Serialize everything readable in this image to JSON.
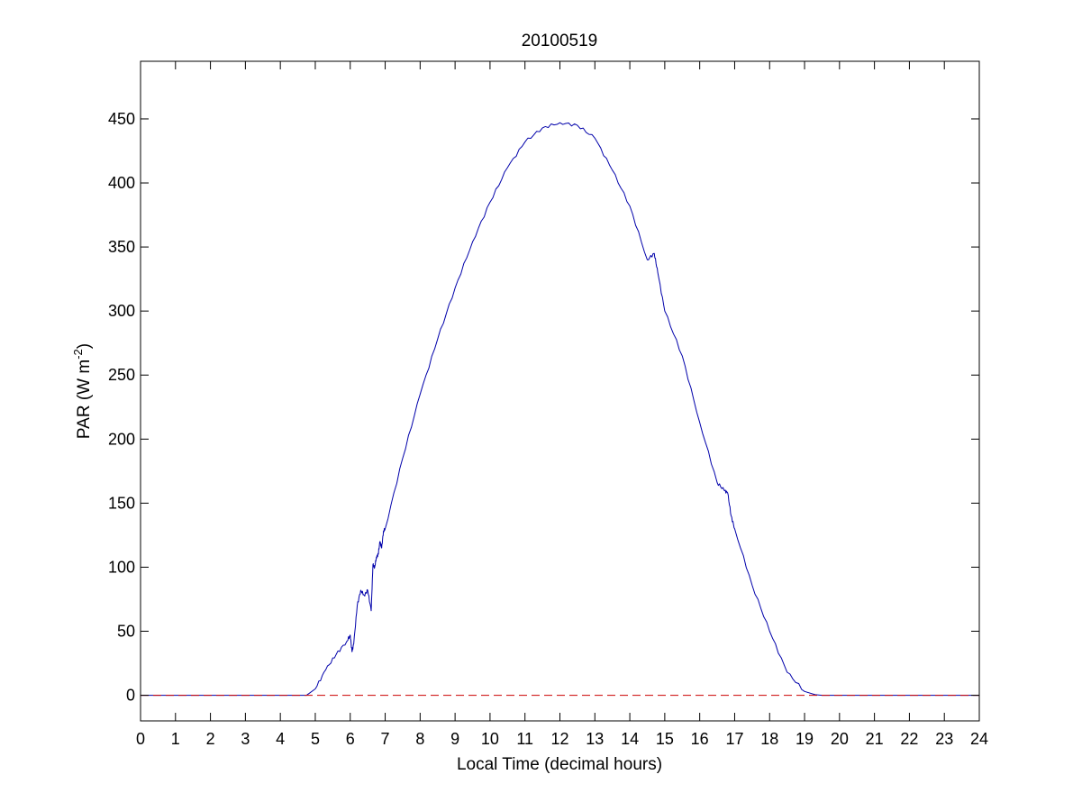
{
  "chart_data": {
    "type": "line",
    "title": "20100519",
    "xlabel": "Local Time (decimal hours)",
    "ylabel": {
      "main": "PAR (W m",
      "superscript": "-2",
      "close": ")"
    },
    "xlim": [
      0,
      24
    ],
    "ylim": [
      -20,
      495
    ],
    "xticks": [
      "0",
      "1",
      "2",
      "3",
      "4",
      "5",
      "6",
      "7",
      "8",
      "9",
      "10",
      "11",
      "12",
      "13",
      "14",
      "15",
      "16",
      "17",
      "18",
      "19",
      "20",
      "21",
      "22",
      "23",
      "24"
    ],
    "yticks": [
      "0",
      "50",
      "100",
      "150",
      "200",
      "250",
      "300",
      "350",
      "400",
      "450"
    ],
    "grid": false,
    "legend": "none",
    "series": [
      {
        "color": "#0000aa",
        "style": "solid",
        "x": [
          0,
          4.5,
          4.75,
          5.0,
          5.3,
          5.6,
          5.9,
          6.0,
          6.05,
          6.1,
          6.2,
          6.3,
          6.4,
          6.5,
          6.6,
          6.65,
          6.7,
          6.75,
          6.8,
          6.85,
          6.9,
          6.95,
          7.0,
          7.5,
          8.0,
          8.5,
          9.0,
          9.5,
          10.0,
          10.5,
          11.0,
          11.5,
          12.0,
          12.5,
          13.0,
          13.5,
          14.0,
          14.5,
          14.7,
          14.8,
          15.0,
          15.5,
          16.0,
          16.5,
          16.7,
          16.8,
          16.9,
          17.0,
          17.5,
          18.0,
          18.5,
          19.0,
          19.3,
          19.5,
          19.7,
          20.0,
          24
        ],
        "y": [
          0,
          0,
          0,
          5,
          20,
          32,
          42,
          47,
          34,
          40,
          70,
          82,
          78,
          82,
          66,
          102,
          100,
          108,
          110,
          120,
          115,
          128,
          130,
          185,
          235,
          278,
          318,
          354,
          385,
          412,
          432,
          443,
          447,
          445,
          435,
          410,
          382,
          340,
          345,
          330,
          300,
          265,
          213,
          166,
          160,
          158,
          140,
          130,
          86,
          50,
          18,
          3,
          0.5,
          0,
          0,
          0,
          0
        ]
      },
      {
        "color": "#cc0000",
        "style": "dashed",
        "x": [
          0,
          24
        ],
        "y": [
          0,
          0
        ]
      }
    ]
  }
}
